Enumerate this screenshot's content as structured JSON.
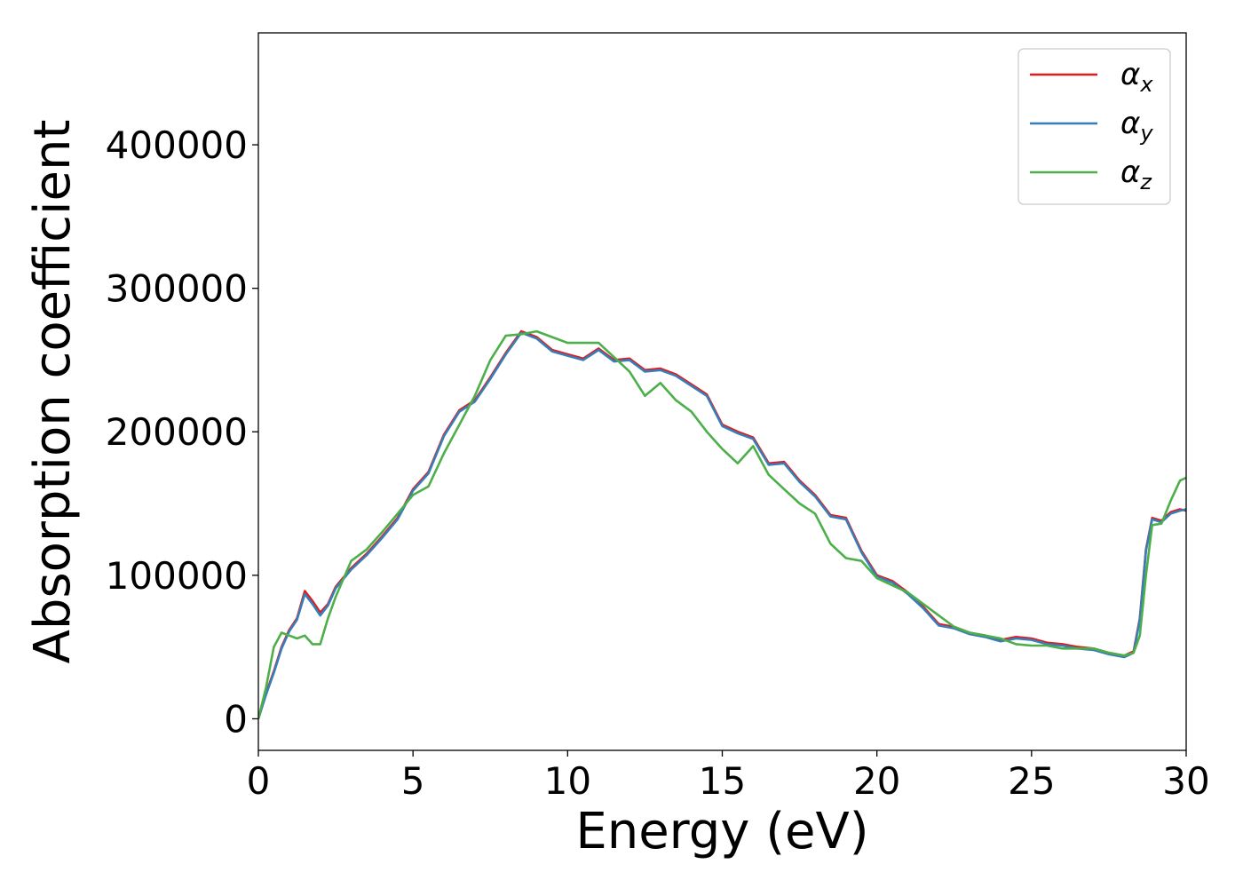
{
  "chart_data": {
    "type": "line",
    "title": "",
    "xlabel": "Energy (eV)",
    "ylabel": "Absorption coefficient",
    "xlim": [
      0,
      30
    ],
    "ylim": [
      -22000,
      478000
    ],
    "xticks": [
      0,
      5,
      10,
      15,
      20,
      25,
      30
    ],
    "yticks": [
      0,
      100000,
      200000,
      300000,
      400000
    ],
    "grid": false,
    "legend_position": "top-right",
    "series": [
      {
        "name": "α",
        "subscript": "x",
        "color": "#e41a1c",
        "x": [
          0,
          0.25,
          0.5,
          0.75,
          1.0,
          1.25,
          1.5,
          1.75,
          2.0,
          2.25,
          2.5,
          3.0,
          3.5,
          4.0,
          4.5,
          5.0,
          5.5,
          6.0,
          6.5,
          7.0,
          7.5,
          8.0,
          8.5,
          9.0,
          9.5,
          10.0,
          10.5,
          11.0,
          11.5,
          12.0,
          12.5,
          13.0,
          13.5,
          14.0,
          14.5,
          15.0,
          15.5,
          16.0,
          16.5,
          17.0,
          17.5,
          18.0,
          18.5,
          19.0,
          19.5,
          20.0,
          20.5,
          21.0,
          21.5,
          22.0,
          22.5,
          23.0,
          23.5,
          24.0,
          24.5,
          25.0,
          25.5,
          26.0,
          26.5,
          27.0,
          27.5,
          28.0,
          28.3,
          28.5,
          28.7,
          28.9,
          29.2,
          29.5,
          29.8,
          30.0
        ],
        "y": [
          0,
          18000,
          33000,
          50000,
          62000,
          70000,
          89000,
          82000,
          74000,
          80000,
          92000,
          105000,
          115000,
          127000,
          140000,
          160000,
          172000,
          198000,
          215000,
          222000,
          238000,
          255000,
          270000,
          266000,
          257000,
          254000,
          251000,
          258000,
          250000,
          251000,
          243000,
          244000,
          240000,
          233000,
          226000,
          205000,
          200000,
          196000,
          178000,
          179000,
          166000,
          156000,
          142000,
          140000,
          117000,
          100000,
          96000,
          88000,
          78000,
          66000,
          64000,
          60000,
          58000,
          55000,
          57000,
          56000,
          53000,
          52000,
          50000,
          49000,
          46000,
          44000,
          47000,
          70000,
          118000,
          140000,
          138000,
          144000,
          146000,
          145000
        ]
      },
      {
        "name": "α",
        "subscript": "y",
        "color": "#377eb8",
        "x": [
          0,
          0.25,
          0.5,
          0.75,
          1.0,
          1.25,
          1.5,
          1.75,
          2.0,
          2.25,
          2.5,
          3.0,
          3.5,
          4.0,
          4.5,
          5.0,
          5.5,
          6.0,
          6.5,
          7.0,
          7.5,
          8.0,
          8.5,
          9.0,
          9.5,
          10.0,
          10.5,
          11.0,
          11.5,
          12.0,
          12.5,
          13.0,
          13.5,
          14.0,
          14.5,
          15.0,
          15.5,
          16.0,
          16.5,
          17.0,
          17.5,
          18.0,
          18.5,
          19.0,
          19.5,
          20.0,
          20.5,
          21.0,
          21.5,
          22.0,
          22.5,
          23.0,
          23.5,
          24.0,
          24.5,
          25.0,
          25.5,
          26.0,
          26.5,
          27.0,
          27.5,
          28.0,
          28.3,
          28.5,
          28.7,
          28.9,
          29.2,
          29.5,
          29.8,
          30.0
        ],
        "y": [
          0,
          17000,
          32000,
          49000,
          61000,
          69000,
          87000,
          80000,
          72000,
          79000,
          91000,
          104000,
          114000,
          126000,
          139000,
          159000,
          171000,
          197000,
          214000,
          221000,
          237000,
          254000,
          269000,
          265000,
          256000,
          253000,
          250000,
          257000,
          249000,
          250000,
          242000,
          243000,
          239000,
          232000,
          225000,
          204000,
          199000,
          195000,
          177000,
          178000,
          165000,
          155000,
          141000,
          139000,
          116000,
          99000,
          95000,
          87000,
          77000,
          65000,
          63000,
          59000,
          57000,
          54000,
          56000,
          55000,
          52000,
          51000,
          49000,
          48000,
          45000,
          43000,
          46000,
          69000,
          117000,
          139000,
          137000,
          143000,
          145000,
          146000
        ]
      },
      {
        "name": "α",
        "subscript": "z",
        "color": "#4daf4a",
        "x": [
          0,
          0.25,
          0.5,
          0.75,
          1.0,
          1.25,
          1.5,
          1.75,
          2.0,
          2.25,
          2.5,
          3.0,
          3.5,
          4.0,
          4.5,
          5.0,
          5.5,
          6.0,
          6.5,
          7.0,
          7.5,
          8.0,
          8.5,
          9.0,
          9.5,
          10.0,
          10.5,
          11.0,
          11.5,
          12.0,
          12.5,
          13.0,
          13.5,
          14.0,
          14.5,
          15.0,
          15.5,
          16.0,
          16.5,
          17.0,
          17.5,
          18.0,
          18.5,
          19.0,
          19.5,
          20.0,
          20.5,
          21.0,
          21.5,
          22.0,
          22.5,
          23.0,
          23.5,
          24.0,
          24.5,
          25.0,
          25.5,
          26.0,
          26.5,
          27.0,
          27.5,
          28.0,
          28.3,
          28.5,
          28.7,
          28.9,
          29.2,
          29.5,
          29.8,
          30.0
        ],
        "y": [
          0,
          22000,
          50000,
          60000,
          58000,
          56000,
          58000,
          52000,
          52000,
          70000,
          85000,
          110000,
          118000,
          130000,
          143000,
          156000,
          162000,
          185000,
          205000,
          225000,
          250000,
          267000,
          268000,
          270000,
          266000,
          262000,
          262000,
          262000,
          252000,
          242000,
          225000,
          234000,
          222000,
          214000,
          200000,
          188000,
          178000,
          190000,
          170000,
          160000,
          150000,
          143000,
          122000,
          112000,
          110000,
          98000,
          93000,
          88000,
          80000,
          72000,
          64000,
          60000,
          58000,
          56000,
          52000,
          51000,
          51000,
          49000,
          49000,
          49000,
          46000,
          44000,
          46000,
          58000,
          100000,
          135000,
          136000,
          152000,
          166000,
          168000
        ]
      }
    ]
  }
}
